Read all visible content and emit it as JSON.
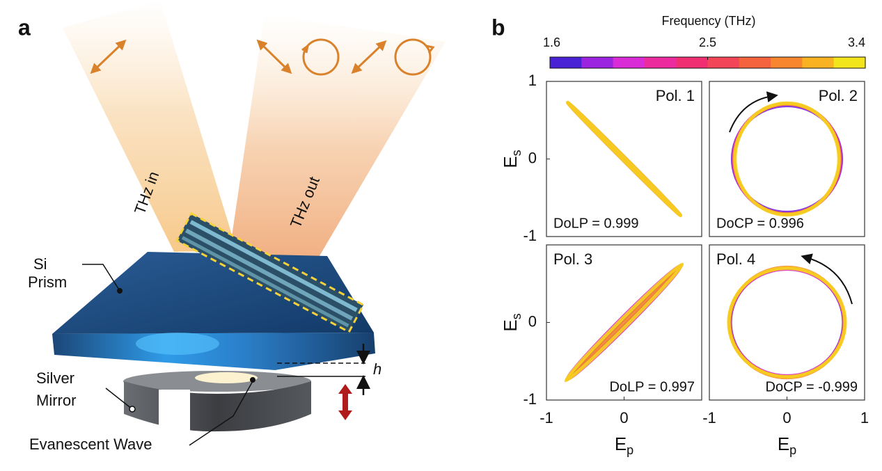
{
  "panel_a": {
    "label": "a",
    "beam_in": "THz in",
    "beam_out": "THz out",
    "prism": [
      "Si",
      "Prism"
    ],
    "mirror": [
      "Silver",
      "Mirror"
    ],
    "wave": "Evanescent Wave",
    "gap": "h"
  },
  "panel_b": {
    "label": "b",
    "colorbar": {
      "title": "Frequency (THz)",
      "colors": [
        "#4a22d6",
        "#9a24e0",
        "#d92cd6",
        "#ec2c9e",
        "#f02f72",
        "#f24658",
        "#f4633e",
        "#f7862e",
        "#f9b322",
        "#f3e51c"
      ],
      "lim": [
        1.6,
        3.4
      ],
      "ticks": [
        1.6,
        2.5,
        3.4
      ]
    }
  },
  "chart_data": [
    {
      "type": "ellipse",
      "title": "Pol. 1",
      "title_corner": "upper right",
      "annotation": "DoLP = 0.999",
      "annotation_corner": "lower left",
      "xlim": [
        -1,
        1
      ],
      "ylim": [
        -1,
        1
      ],
      "yticks": [
        -1,
        0,
        1
      ],
      "y_label": {
        "text": "E",
        "subscript": "s"
      },
      "ellipses": [
        {
          "color": "#7a22e0",
          "rx": 1.0,
          "ry": 0.015,
          "angle": -45
        },
        {
          "color": "#d828c8",
          "rx": 1.01,
          "ry": 0.02,
          "angle": -45
        },
        {
          "color": "#f58a2c",
          "rx": 1.02,
          "ry": 0.01,
          "angle": -45
        },
        {
          "color": "#f6d21e",
          "rx": 1.03,
          "ry": 0.02,
          "angle": -45
        }
      ]
    },
    {
      "type": "ellipse",
      "title": "Pol. 2",
      "title_corner": "upper right",
      "annotation": "DoCP = 0.996",
      "annotation_corner": "lower left",
      "xlim": [
        -1,
        1
      ],
      "ylim": [
        -1,
        1
      ],
      "ellipses": [
        {
          "color": "#7a22e0",
          "rx": 0.7,
          "ry": 0.69,
          "angle": 0
        },
        {
          "color": "#d828c8",
          "rx": 0.69,
          "ry": 0.71,
          "angle": 0
        },
        {
          "color": "#f58a2c",
          "rx": 0.68,
          "ry": 0.71,
          "angle": 0
        },
        {
          "color": "#f6d21e",
          "rx": 0.67,
          "ry": 0.72,
          "angle": 0
        }
      ]
    },
    {
      "type": "ellipse",
      "title": "Pol. 3",
      "title_corner": "upper left",
      "annotation": "DoLP = 0.997",
      "annotation_corner": "lower right",
      "xlim": [
        -1,
        1
      ],
      "ylim": [
        -1,
        1
      ],
      "yticks": [
        -1,
        0
      ],
      "xticks": [
        -1,
        0
      ],
      "y_label": {
        "text": "E",
        "subscript": "s"
      },
      "x_label": {
        "text": "E",
        "subscript": "p"
      },
      "ellipses": [
        {
          "color": "#7a22e0",
          "rx": 1.0,
          "ry": 0.03,
          "angle": 45
        },
        {
          "color": "#d828c8",
          "rx": 1.02,
          "ry": 0.06,
          "angle": 45
        },
        {
          "color": "#f58a2c",
          "rx": 1.04,
          "ry": 0.02,
          "angle": 45
        },
        {
          "color": "#f6d21e",
          "rx": 1.06,
          "ry": 0.05,
          "angle": 45
        }
      ]
    },
    {
      "type": "ellipse",
      "title": "Pol. 4",
      "title_corner": "upper left",
      "annotation": "DoCP = -0.999",
      "annotation_corner": "lower right",
      "xlim": [
        -1,
        1
      ],
      "ylim": [
        -1,
        1
      ],
      "xticks": [
        -1,
        0,
        1
      ],
      "x_label": {
        "text": "E",
        "subscript": "p"
      },
      "ellipses": [
        {
          "color": "#7a22e0",
          "rx": 0.73,
          "ry": 0.7,
          "angle": 0
        },
        {
          "color": "#d828c8",
          "rx": 0.74,
          "ry": 0.69,
          "angle": 0
        },
        {
          "color": "#f58a2c",
          "rx": 0.74,
          "ry": 0.71,
          "angle": 0
        },
        {
          "color": "#f6d21e",
          "rx": 0.75,
          "ry": 0.7,
          "angle": 0
        }
      ]
    }
  ]
}
